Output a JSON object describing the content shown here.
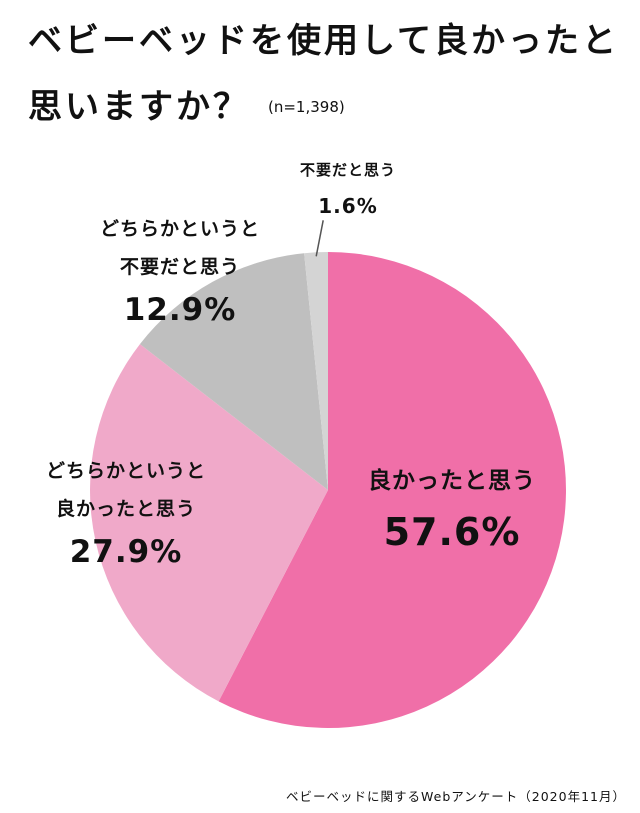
{
  "title": {
    "line1": "ベビーベッドを使用して良かったと",
    "line2": "思いますか？",
    "n_label": "(n=1,398)"
  },
  "colors": {
    "良かったと思う": "#f06fa8",
    "どちらかというと良かったと思う": "#f0a9c9",
    "どちらかというと不要だと思う": "#bfbfbf",
    "不要だと思う": "#d4d4d4"
  },
  "chart_data": {
    "type": "pie",
    "categories": [
      "良かったと思う",
      "どちらかというと良かったと思う",
      "どちらかというと不要だと思う",
      "不要だと思う"
    ],
    "values": [
      57.6,
      27.9,
      12.9,
      1.6
    ],
    "unit": "%",
    "start": "12 o'clock",
    "direction": "clockwise",
    "labels": [
      {
        "lines": [
          "良かったと思う"
        ],
        "value": "57.6%"
      },
      {
        "lines": [
          "どちらかというと",
          "良かったと思う"
        ],
        "value": "27.9%"
      },
      {
        "lines": [
          "どちらかというと",
          "不要だと思う"
        ],
        "value": "12.9%"
      },
      {
        "lines": [
          "不要だと思う"
        ],
        "value": "1.6%"
      }
    ]
  },
  "footer": "ベビーベッドに関するWebアンケート（2020年11月）"
}
